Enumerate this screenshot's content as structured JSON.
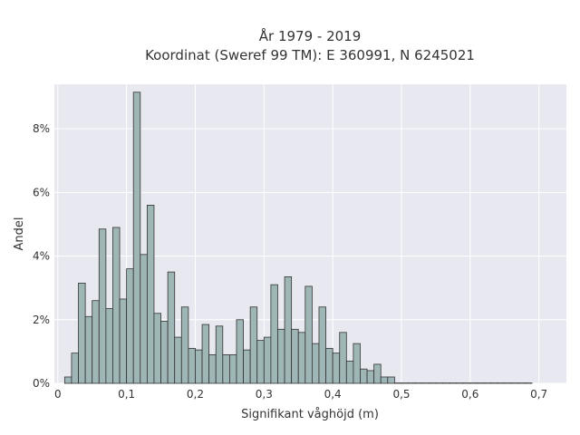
{
  "chart_data": {
    "type": "bar",
    "title_line1": "År 1979 - 2019",
    "title_line2": "Koordinat (Sweref 99 TM): E 360991, N 6245021",
    "xlabel": "Signifikant våghöjd (m)",
    "ylabel": "Andel",
    "bin_width": 0.01,
    "x": [
      0.015,
      0.025,
      0.035,
      0.045,
      0.055,
      0.065,
      0.075,
      0.085,
      0.095,
      0.105,
      0.115,
      0.125,
      0.135,
      0.145,
      0.155,
      0.165,
      0.175,
      0.185,
      0.195,
      0.205,
      0.215,
      0.225,
      0.235,
      0.245,
      0.255,
      0.265,
      0.275,
      0.285,
      0.295,
      0.305,
      0.315,
      0.325,
      0.335,
      0.345,
      0.355,
      0.365,
      0.375,
      0.385,
      0.395,
      0.405,
      0.415,
      0.425,
      0.435,
      0.445,
      0.455,
      0.465,
      0.475,
      0.485,
      0.495,
      0.505,
      0.515,
      0.525,
      0.535,
      0.545,
      0.555,
      0.565,
      0.575,
      0.585,
      0.595,
      0.605,
      0.615,
      0.625,
      0.635,
      0.645,
      0.655,
      0.665,
      0.675,
      0.685
    ],
    "values": [
      0.2,
      0.95,
      3.15,
      2.1,
      2.6,
      4.85,
      2.35,
      4.9,
      2.65,
      3.6,
      9.15,
      4.05,
      5.6,
      2.2,
      1.95,
      3.5,
      1.45,
      2.4,
      1.1,
      1.05,
      1.85,
      0.9,
      1.8,
      0.9,
      0.9,
      2.0,
      1.05,
      2.4,
      1.35,
      1.45,
      3.1,
      1.7,
      3.35,
      1.7,
      1.6,
      3.05,
      1.25,
      2.4,
      1.1,
      0.95,
      1.6,
      0.7,
      1.25,
      0.45,
      0.4,
      0.6,
      0.2,
      0.2,
      0.0,
      0.0,
      0.0,
      0.0,
      0.0,
      0.0,
      0.0,
      0.0,
      0.0,
      0.0,
      0.0,
      0.0,
      0.0,
      0.0,
      0.0,
      0.0,
      0.0,
      0.0,
      0.0,
      0.0
    ],
    "xlim": [
      -0.005,
      0.74
    ],
    "ylim": [
      0,
      9.4
    ],
    "xticks": [
      0,
      0.1,
      0.2,
      0.3,
      0.4,
      0.5,
      0.6,
      0.7
    ],
    "xtick_labels": [
      "0",
      "0,1",
      "0,2",
      "0,3",
      "0,4",
      "0,5",
      "0,6",
      "0,7"
    ],
    "yticks": [
      0,
      2,
      4,
      6,
      8
    ],
    "ytick_labels": [
      "0%",
      "2%",
      "4%",
      "6%",
      "8%"
    ],
    "grid": true,
    "colors": {
      "bar_fill": "#9fb6b7",
      "bar_edge": "#333333",
      "plot_bg": "#e8e8f0",
      "grid": "#ffffff"
    }
  }
}
